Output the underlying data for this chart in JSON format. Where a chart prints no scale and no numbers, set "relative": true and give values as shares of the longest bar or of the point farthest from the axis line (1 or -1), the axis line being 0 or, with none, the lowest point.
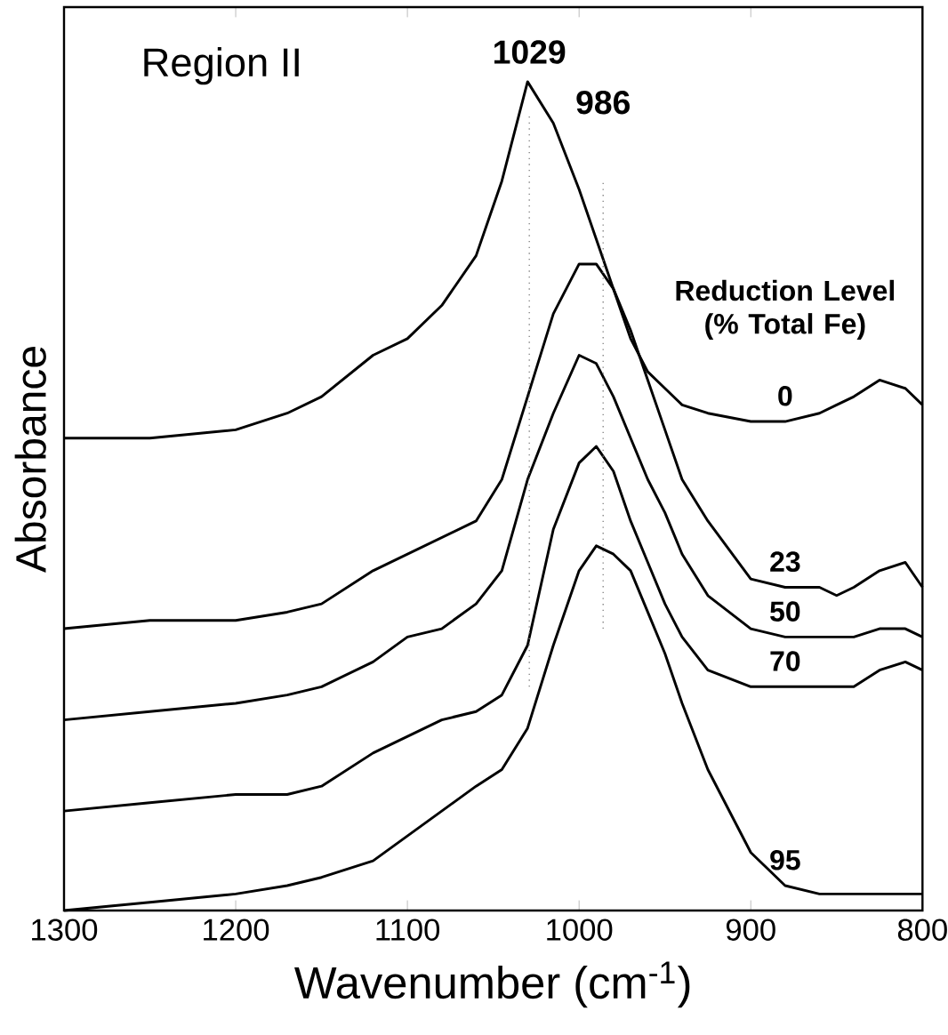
{
  "chart_data": {
    "type": "line",
    "relative": true,
    "xlabel": "Wavenumber (cm$^{-1}$)",
    "ylabel": "Absorbance",
    "legend_title": "Reduction Level (% Total Fe)",
    "annotations": [
      "Region II"
    ],
    "x": [
      1300,
      1250,
      1200,
      1170,
      1150,
      1120,
      1100,
      1080,
      1060,
      1045,
      1030,
      1015,
      1000,
      990,
      980,
      970,
      960,
      950,
      940,
      925,
      900,
      880,
      860,
      850,
      840,
      825,
      810,
      800
    ],
    "xlim": [
      1300,
      800
    ],
    "xticks": [
      1300,
      1200,
      1100,
      1000,
      900,
      800
    ],
    "ref_lines": [
      {
        "axis": "x",
        "value": 1029,
        "label": "1029",
        "line_style": "dotted"
      },
      {
        "axis": "x",
        "value": 986,
        "label": "986",
        "line_style": "dotted"
      }
    ],
    "series": [
      {
        "name": "0",
        "color": "#000000",
        "values": [
          0.57,
          0.57,
          0.58,
          0.6,
          0.62,
          0.67,
          0.69,
          0.73,
          0.79,
          0.88,
          1.0,
          0.95,
          0.87,
          0.81,
          0.75,
          0.69,
          0.65,
          0.63,
          0.61,
          0.6,
          0.59,
          0.59,
          0.6,
          0.61,
          0.62,
          0.64,
          0.63,
          0.61
        ]
      },
      {
        "name": "23",
        "color": "#000000",
        "values": [
          0.34,
          0.35,
          0.35,
          0.36,
          0.37,
          0.41,
          0.43,
          0.45,
          0.47,
          0.52,
          0.62,
          0.72,
          0.78,
          0.78,
          0.75,
          0.7,
          0.64,
          0.58,
          0.52,
          0.47,
          0.4,
          0.39,
          0.39,
          0.38,
          0.39,
          0.41,
          0.42,
          0.39
        ]
      },
      {
        "name": "50",
        "color": "#000000",
        "values": [
          0.23,
          0.24,
          0.25,
          0.26,
          0.27,
          0.3,
          0.33,
          0.34,
          0.37,
          0.41,
          0.52,
          0.6,
          0.67,
          0.66,
          0.62,
          0.57,
          0.52,
          0.48,
          0.43,
          0.38,
          0.34,
          0.33,
          0.33,
          0.33,
          0.33,
          0.34,
          0.34,
          0.33
        ]
      },
      {
        "name": "70",
        "color": "#000000",
        "values": [
          0.12,
          0.13,
          0.14,
          0.14,
          0.15,
          0.19,
          0.21,
          0.23,
          0.24,
          0.26,
          0.32,
          0.46,
          0.54,
          0.56,
          0.53,
          0.47,
          0.42,
          0.37,
          0.33,
          0.29,
          0.27,
          0.27,
          0.27,
          0.27,
          0.27,
          0.29,
          0.3,
          0.29
        ]
      },
      {
        "name": "95",
        "color": "#000000",
        "values": [
          0.0,
          0.01,
          0.02,
          0.03,
          0.04,
          0.06,
          0.09,
          0.12,
          0.15,
          0.17,
          0.22,
          0.32,
          0.41,
          0.44,
          0.43,
          0.41,
          0.36,
          0.31,
          0.25,
          0.17,
          0.07,
          0.03,
          0.02,
          0.02,
          0.02,
          0.02,
          0.02,
          0.02
        ]
      }
    ],
    "line_style": "solid",
    "marker": "none",
    "legend": false,
    "grid": false
  }
}
